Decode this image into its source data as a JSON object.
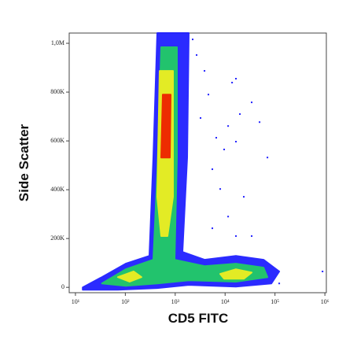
{
  "chart_data": {
    "type": "density",
    "x_label": "CD5 FITC",
    "y_label": "Side Scatter",
    "x_log": true,
    "xlim": [
      7.5,
      1070000
    ],
    "xticks": [
      {
        "value": 10,
        "label": "10¹"
      },
      {
        "value": 100,
        "label": "10²"
      },
      {
        "value": 1000,
        "label": "10³"
      },
      {
        "value": 10000,
        "label": "10⁴"
      },
      {
        "value": 100000,
        "label": "10⁵"
      },
      {
        "value": 1000000,
        "label": "10⁶"
      }
    ],
    "ylim": [
      -22000,
      1042000
    ],
    "yticks": [
      0,
      {
        "value": 200000,
        "label": "200K"
      },
      {
        "value": 400000,
        "label": "400K"
      },
      {
        "value": 600000,
        "label": "600K"
      },
      {
        "value": 800000,
        "label": "800K"
      },
      {
        "value": 1000000,
        "label": "1,0M"
      }
    ],
    "regions": [
      {
        "color": "#2020ff",
        "x": [
          14,
          34,
          102,
          304,
          364,
          437,
          1868,
          1738,
          1397,
          3865,
          16500,
          58900,
          121600,
          84600,
          16500,
          1868,
          437,
          71,
          14
        ],
        "y": [
          0,
          42000,
          97000,
          129000,
          532000,
          1042000,
          1042000,
          532000,
          145000,
          113000,
          129000,
          113000,
          65000,
          16000,
          3000,
          10000,
          -3000,
          -10000,
          -10000
        ]
      },
      {
        "color": "#22cc66",
        "x": [
          34,
          102,
          364,
          437,
          524,
          1084,
          1084,
          971,
          3865,
          16500,
          58900,
          70600,
          16500,
          1868,
          437,
          102
        ],
        "y": [
          16000,
          74000,
          113000,
          468000,
          984000,
          984000,
          532000,
          113000,
          87000,
          97000,
          81000,
          42000,
          23000,
          29000,
          16000,
          6000
        ]
      },
      {
        "color": "#eeee22",
        "x": [
          437,
          487,
          904,
          904,
          700,
          524
        ],
        "y": [
          371000,
          887000,
          887000,
          371000,
          210000,
          210000
        ]
      },
      {
        "color": "#eeee22",
        "x": [
          7980,
          16500,
          34100,
          23700,
          9570
        ],
        "y": [
          55000,
          74000,
          61000,
          35000,
          35000
        ]
      },
      {
        "color": "#eeee22",
        "x": [
          71,
          147,
          211,
          122
        ],
        "y": [
          42000,
          65000,
          42000,
          23000
        ]
      },
      {
        "color": "#ee2200",
        "x": [
          524,
          564,
          811,
          781
        ],
        "y": [
          532000,
          790000,
          790000,
          532000
        ]
      }
    ],
    "points": {
      "color": "#2020ff",
      "x": [
        13800,
        16500,
        34100,
        11500,
        19800,
        5550,
        9570,
        16500,
        49100,
        23700,
        11500,
        5550,
        34100,
        2685,
        3865,
        2239,
        70600,
        7980,
        16500,
        3220,
        898000,
        121600,
        4630,
        6650
      ],
      "y": [
        839000,
        855000,
        758000,
        661000,
        710000,
        484000,
        565000,
        597000,
        677000,
        371000,
        290000,
        242000,
        210000,
        952000,
        887000,
        1016000,
        532000,
        403000,
        210000,
        694000,
        65000,
        16000,
        790000,
        613000
      ]
    }
  }
}
